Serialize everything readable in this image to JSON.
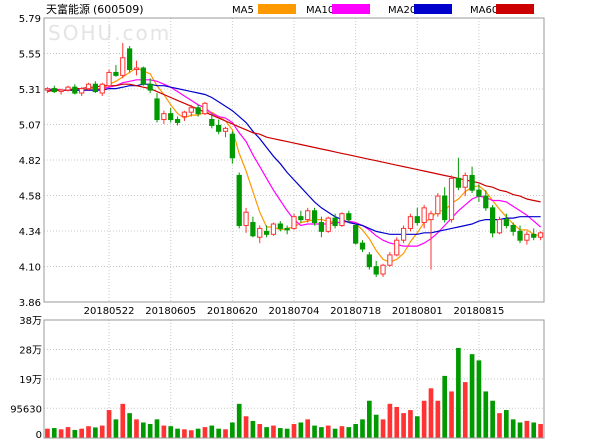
{
  "chart_data": {
    "type": "candlestick",
    "title": "天富能源",
    "code": "(600509)",
    "watermark": "SOHU.com",
    "legend": [
      {
        "name": "MA5",
        "color": "#ff9900"
      },
      {
        "name": "MA10",
        "color": "#ff00ff"
      },
      {
        "name": "MA20",
        "color": "#0000cc"
      },
      {
        "name": "MA60",
        "color": "#cc0000"
      }
    ],
    "price_axis": {
      "ticks": [
        "5.79",
        "5.55",
        "5.31",
        "5.07",
        "4.82",
        "4.58",
        "4.34",
        "4.10",
        "3.86"
      ],
      "ylim": [
        3.86,
        5.79
      ]
    },
    "volume_axis": {
      "ticks": [
        "38万",
        "28万",
        "19万",
        "95630",
        "0"
      ],
      "ylim": [
        0,
        380000
      ]
    },
    "x_ticks": [
      "20180522",
      "20180605",
      "20180620",
      "20180704",
      "20180718",
      "20180801",
      "20180815"
    ],
    "x_tick_index": [
      9,
      18,
      27,
      36,
      45,
      54,
      63
    ],
    "colors": {
      "up": "#ff3333",
      "down": "#009900",
      "grid": "#c8c8c8",
      "frame": "#999999"
    },
    "ohlc": [
      [
        5.3,
        5.32,
        5.28,
        5.31
      ],
      [
        5.31,
        5.33,
        5.28,
        5.29
      ],
      [
        5.29,
        5.31,
        5.27,
        5.3
      ],
      [
        5.3,
        5.33,
        5.29,
        5.32
      ],
      [
        5.32,
        5.34,
        5.27,
        5.28
      ],
      [
        5.28,
        5.32,
        5.26,
        5.31
      ],
      [
        5.31,
        5.35,
        5.3,
        5.34
      ],
      [
        5.34,
        5.36,
        5.28,
        5.29
      ],
      [
        5.28,
        5.35,
        5.26,
        5.34
      ],
      [
        5.33,
        5.44,
        5.32,
        5.42
      ],
      [
        5.42,
        5.47,
        5.39,
        5.4
      ],
      [
        5.4,
        5.62,
        5.38,
        5.52
      ],
      [
        5.58,
        5.6,
        5.42,
        5.44
      ],
      [
        5.44,
        5.5,
        5.4,
        5.45
      ],
      [
        5.45,
        5.46,
        5.33,
        5.34
      ],
      [
        5.34,
        5.38,
        5.28,
        5.3
      ],
      [
        5.24,
        5.28,
        5.08,
        5.1
      ],
      [
        5.1,
        5.16,
        5.07,
        5.14
      ],
      [
        5.14,
        5.18,
        5.08,
        5.1
      ],
      [
        5.1,
        5.12,
        5.06,
        5.08
      ],
      [
        5.12,
        5.16,
        5.09,
        5.15
      ],
      [
        5.15,
        5.2,
        5.12,
        5.18
      ],
      [
        5.18,
        5.2,
        5.12,
        5.14
      ],
      [
        5.14,
        5.22,
        5.13,
        5.21
      ],
      [
        5.1,
        5.14,
        5.04,
        5.06
      ],
      [
        5.06,
        5.1,
        5.0,
        5.02
      ],
      [
        5.02,
        5.05,
        4.98,
        5.04
      ],
      [
        5.0,
        5.02,
        4.8,
        4.84
      ],
      [
        4.72,
        4.74,
        4.36,
        4.38
      ],
      [
        4.38,
        4.5,
        4.33,
        4.47
      ],
      [
        4.4,
        4.44,
        4.3,
        4.31
      ],
      [
        4.3,
        4.38,
        4.26,
        4.36
      ],
      [
        4.34,
        4.38,
        4.3,
        4.32
      ],
      [
        4.32,
        4.4,
        4.31,
        4.39
      ],
      [
        4.39,
        4.41,
        4.34,
        4.36
      ],
      [
        4.36,
        4.38,
        4.32,
        4.35
      ],
      [
        4.36,
        4.46,
        4.35,
        4.44
      ],
      [
        4.44,
        4.48,
        4.4,
        4.42
      ],
      [
        4.42,
        4.5,
        4.4,
        4.48
      ],
      [
        4.48,
        4.5,
        4.38,
        4.4
      ],
      [
        4.4,
        4.44,
        4.3,
        4.34
      ],
      [
        4.34,
        4.44,
        4.33,
        4.43
      ],
      [
        4.43,
        4.46,
        4.36,
        4.38
      ],
      [
        4.38,
        4.47,
        4.37,
        4.46
      ],
      [
        4.46,
        4.48,
        4.4,
        4.42
      ],
      [
        4.38,
        4.4,
        4.25,
        4.26
      ],
      [
        4.26,
        4.28,
        4.2,
        4.22
      ],
      [
        4.18,
        4.2,
        4.08,
        4.1
      ],
      [
        4.1,
        4.14,
        4.03,
        4.05
      ],
      [
        4.05,
        4.12,
        4.03,
        4.11
      ],
      [
        4.11,
        4.2,
        4.1,
        4.18
      ],
      [
        4.18,
        4.3,
        4.17,
        4.28
      ],
      [
        4.28,
        4.38,
        4.26,
        4.36
      ],
      [
        4.36,
        4.46,
        4.34,
        4.44
      ],
      [
        4.44,
        4.5,
        4.38,
        4.4
      ],
      [
        4.4,
        4.52,
        4.36,
        4.5
      ],
      [
        4.42,
        4.48,
        4.08,
        4.46
      ],
      [
        4.46,
        4.6,
        4.44,
        4.58
      ],
      [
        4.58,
        4.64,
        4.4,
        4.42
      ],
      [
        4.42,
        4.72,
        4.4,
        4.7
      ],
      [
        4.7,
        4.84,
        4.62,
        4.64
      ],
      [
        4.64,
        4.74,
        4.58,
        4.72
      ],
      [
        4.72,
        4.78,
        4.6,
        4.62
      ],
      [
        4.62,
        4.66,
        4.54,
        4.58
      ],
      [
        4.58,
        4.62,
        4.48,
        4.5
      ],
      [
        4.5,
        4.52,
        4.3,
        4.33
      ],
      [
        4.33,
        4.44,
        4.32,
        4.42
      ],
      [
        4.42,
        4.46,
        4.36,
        4.38
      ],
      [
        4.38,
        4.4,
        4.31,
        4.34
      ],
      [
        4.34,
        4.38,
        4.26,
        4.28
      ],
      [
        4.28,
        4.34,
        4.25,
        4.32
      ],
      [
        4.32,
        4.36,
        4.28,
        4.3
      ],
      [
        4.3,
        4.34,
        4.28,
        4.33
      ]
    ],
    "volume": [
      30000,
      32000,
      28000,
      35000,
      26000,
      30000,
      38000,
      34000,
      40000,
      90000,
      60000,
      110000,
      80000,
      60000,
      50000,
      45000,
      60000,
      40000,
      38000,
      30000,
      28000,
      25000,
      30000,
      35000,
      40000,
      30000,
      28000,
      50000,
      110000,
      70000,
      55000,
      45000,
      35000,
      40000,
      32000,
      30000,
      45000,
      50000,
      60000,
      40000,
      35000,
      40000,
      30000,
      38000,
      35000,
      45000,
      60000,
      120000,
      75000,
      60000,
      110000,
      100000,
      80000,
      90000,
      70000,
      120000,
      160000,
      120000,
      200000,
      150000,
      290000,
      180000,
      270000,
      250000,
      150000,
      120000,
      80000,
      90000,
      60000,
      50000,
      55000,
      50000,
      45000
    ],
    "ma": {
      "MA5": [
        5.3,
        5.31,
        5.3,
        5.3,
        5.3,
        5.3,
        5.31,
        5.31,
        5.31,
        5.34,
        5.36,
        5.39,
        5.42,
        5.45,
        5.43,
        5.41,
        5.33,
        5.27,
        5.2,
        5.14,
        5.11,
        5.13,
        5.13,
        5.15,
        5.15,
        5.12,
        5.09,
        5.03,
        4.87,
        4.75,
        4.61,
        4.47,
        4.37,
        4.37,
        4.35,
        4.36,
        4.37,
        4.4,
        4.41,
        4.42,
        4.42,
        4.41,
        4.4,
        4.4,
        4.41,
        4.39,
        4.35,
        4.29,
        4.21,
        4.15,
        4.13,
        4.15,
        4.19,
        4.27,
        4.33,
        4.4,
        4.43,
        4.48,
        4.48,
        4.53,
        4.56,
        4.61,
        4.64,
        4.65,
        4.61,
        4.55,
        4.49,
        4.44,
        4.39,
        4.35,
        4.35,
        4.32,
        4.31
      ],
      "MA10": [
        5.3,
        5.31,
        5.3,
        5.3,
        5.3,
        5.3,
        5.3,
        5.3,
        5.31,
        5.32,
        5.33,
        5.35,
        5.36,
        5.37,
        5.37,
        5.37,
        5.36,
        5.34,
        5.32,
        5.29,
        5.26,
        5.23,
        5.2,
        5.18,
        5.14,
        5.12,
        5.11,
        5.08,
        5.01,
        4.95,
        4.86,
        4.78,
        4.7,
        4.62,
        4.55,
        4.48,
        4.42,
        4.38,
        4.39,
        4.39,
        4.39,
        4.39,
        4.4,
        4.4,
        4.41,
        4.4,
        4.38,
        4.35,
        4.31,
        4.28,
        4.26,
        4.25,
        4.24,
        4.24,
        4.24,
        4.26,
        4.29,
        4.33,
        4.38,
        4.43,
        4.48,
        4.52,
        4.56,
        4.58,
        4.57,
        4.55,
        4.55,
        4.54,
        4.51,
        4.48,
        4.45,
        4.41,
        4.37
      ],
      "MA20": [
        5.3,
        5.3,
        5.3,
        5.3,
        5.3,
        5.3,
        5.3,
        5.3,
        5.3,
        5.31,
        5.31,
        5.32,
        5.33,
        5.33,
        5.34,
        5.34,
        5.33,
        5.33,
        5.32,
        5.31,
        5.3,
        5.29,
        5.28,
        5.27,
        5.25,
        5.22,
        5.19,
        5.16,
        5.12,
        5.08,
        5.02,
        4.97,
        4.91,
        4.85,
        4.8,
        4.74,
        4.69,
        4.64,
        4.59,
        4.54,
        4.5,
        4.47,
        4.44,
        4.42,
        4.4,
        4.39,
        4.38,
        4.36,
        4.34,
        4.33,
        4.32,
        4.32,
        4.32,
        4.32,
        4.32,
        4.33,
        4.33,
        4.34,
        4.35,
        4.36,
        4.37,
        4.38,
        4.39,
        4.41,
        4.42,
        4.42,
        4.42,
        4.43,
        4.43,
        4.44,
        4.44,
        4.44,
        4.44
      ],
      "MA60": [
        5.29,
        5.3,
        5.3,
        5.3,
        5.31,
        5.31,
        5.32,
        5.32,
        5.33,
        5.33,
        5.33,
        5.34,
        5.34,
        5.33,
        5.32,
        5.31,
        5.29,
        5.27,
        5.25,
        5.23,
        5.21,
        5.19,
        5.17,
        5.15,
        5.13,
        5.11,
        5.09,
        5.07,
        5.05,
        5.03,
        5.01,
        5.0,
        4.98,
        4.97,
        4.96,
        4.95,
        4.94,
        4.93,
        4.92,
        4.91,
        4.9,
        4.89,
        4.88,
        4.87,
        4.86,
        4.85,
        4.84,
        4.83,
        4.82,
        4.81,
        4.8,
        4.79,
        4.78,
        4.77,
        4.76,
        4.75,
        4.74,
        4.73,
        4.72,
        4.71,
        4.7,
        4.69,
        4.68,
        4.67,
        4.65,
        4.64,
        4.62,
        4.61,
        4.59,
        4.58,
        4.56,
        4.55,
        4.54
      ]
    }
  }
}
